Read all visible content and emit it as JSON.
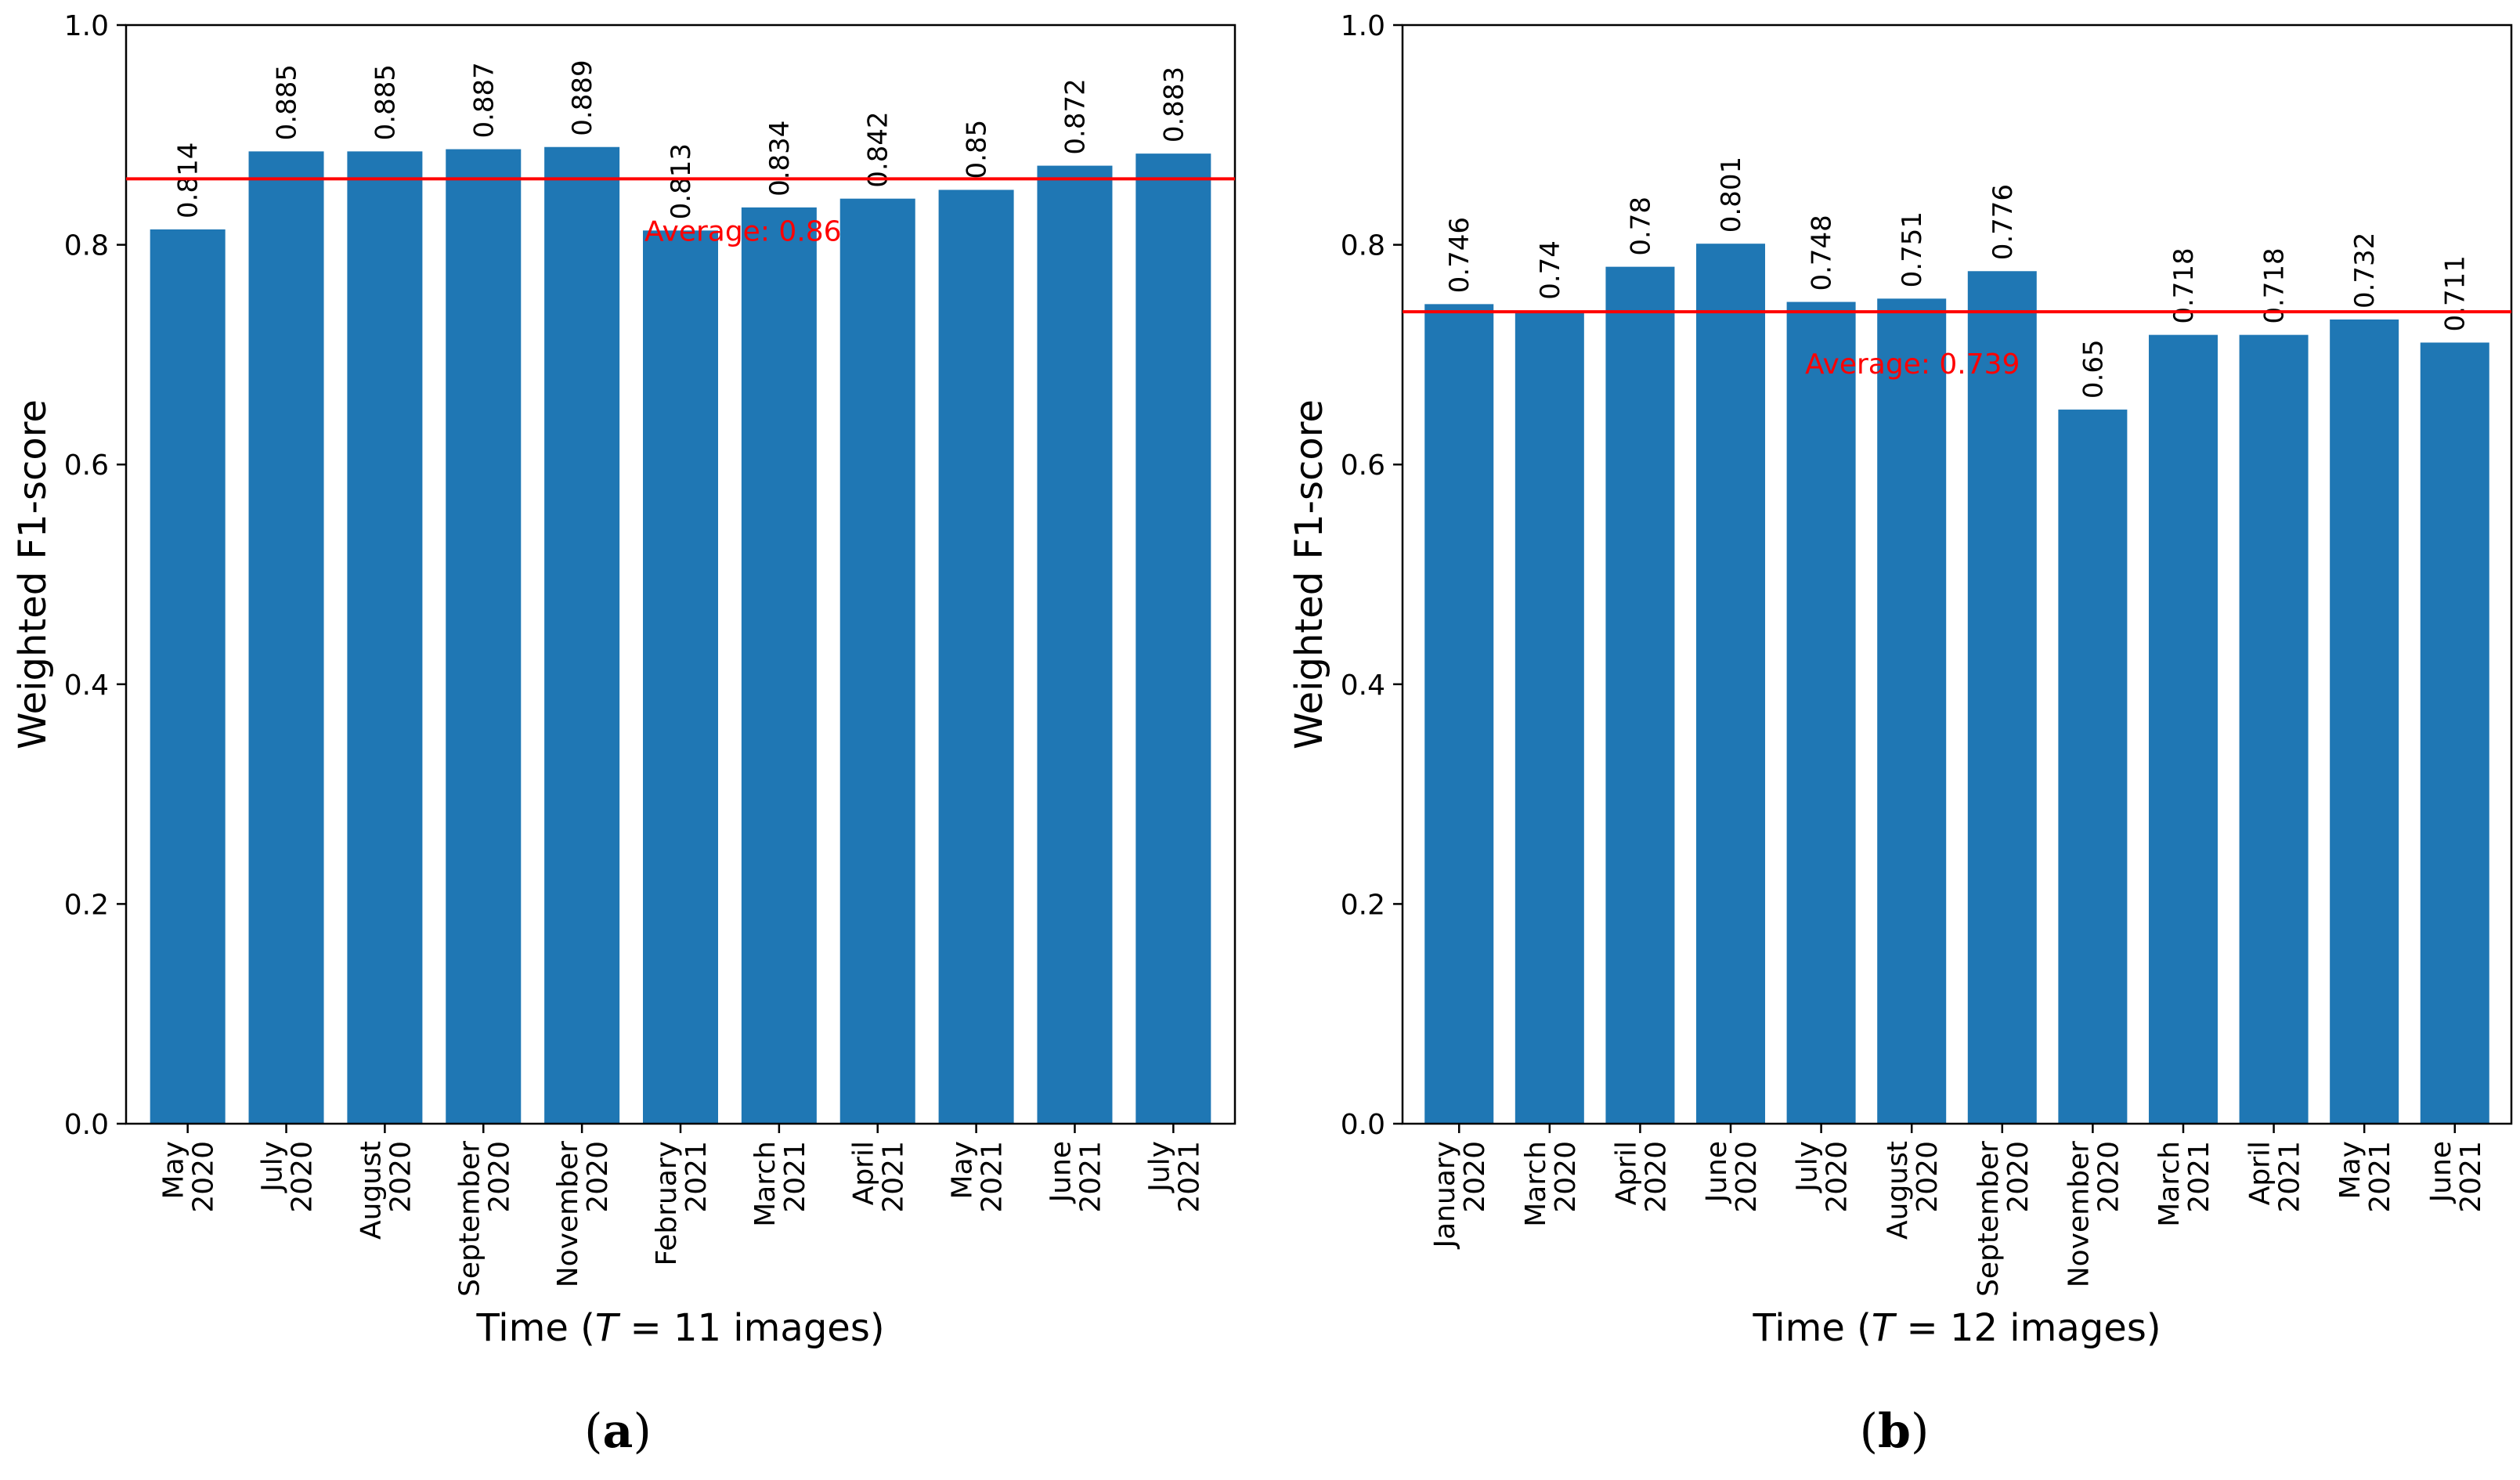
{
  "colors": {
    "bar": "#1f77b4",
    "average": "#ff0000",
    "axis": "#000000"
  },
  "chart_data": [
    {
      "type": "bar",
      "panel": "(a)",
      "categories": [
        [
          "May",
          "2020"
        ],
        [
          "July",
          "2020"
        ],
        [
          "August",
          "2020"
        ],
        [
          "September",
          "2020"
        ],
        [
          "November",
          "2020"
        ],
        [
          "February",
          "2021"
        ],
        [
          "March",
          "2021"
        ],
        [
          "April",
          "2021"
        ],
        [
          "May",
          "2021"
        ],
        [
          "June",
          "2021"
        ],
        [
          "July",
          "2021"
        ]
      ],
      "values": [
        0.814,
        0.885,
        0.885,
        0.887,
        0.889,
        0.813,
        0.834,
        0.842,
        0.85,
        0.872,
        0.883
      ],
      "value_labels": [
        "0.814",
        "0.885",
        "0.885",
        "0.887",
        "0.889",
        "0.813",
        "0.834",
        "0.842",
        "0.85",
        "0.872",
        "0.883"
      ],
      "average": 0.86,
      "average_label": "Average: 0.86",
      "ylabel": "Weighted F1-score",
      "xlabel": {
        "prefix": "Time (",
        "var": "T",
        "suffix": " = 11 images)"
      },
      "ylim": [
        0.0,
        1.0
      ],
      "yticks": [
        "0.0",
        "0.2",
        "0.4",
        "0.6",
        "0.8",
        "1.0"
      ]
    },
    {
      "type": "bar",
      "panel": "(b)",
      "categories": [
        [
          "January",
          "2020"
        ],
        [
          "March",
          "2020"
        ],
        [
          "April",
          "2020"
        ],
        [
          "June",
          "2020"
        ],
        [
          "July",
          "2020"
        ],
        [
          "August",
          "2020"
        ],
        [
          "September",
          "2020"
        ],
        [
          "November",
          "2020"
        ],
        [
          "March",
          "2021"
        ],
        [
          "April",
          "2021"
        ],
        [
          "May",
          "2021"
        ],
        [
          "June",
          "2021"
        ]
      ],
      "values": [
        0.746,
        0.74,
        0.78,
        0.801,
        0.748,
        0.751,
        0.776,
        0.65,
        0.718,
        0.718,
        0.732,
        0.711
      ],
      "value_labels": [
        "0.746",
        "0.74",
        "0.78",
        "0.801",
        "0.748",
        "0.751",
        "0.776",
        "0.65",
        "0.718",
        "0.718",
        "0.732",
        "0.711"
      ],
      "average": 0.739,
      "average_label": "Average: 0.739",
      "ylabel": "Weighted F1-score",
      "xlabel": {
        "prefix": "Time (",
        "var": "T",
        "suffix": " = 12 images)"
      },
      "ylim": [
        0.0,
        1.0
      ],
      "yticks": [
        "0.0",
        "0.2",
        "0.4",
        "0.6",
        "0.8",
        "1.0"
      ]
    }
  ]
}
